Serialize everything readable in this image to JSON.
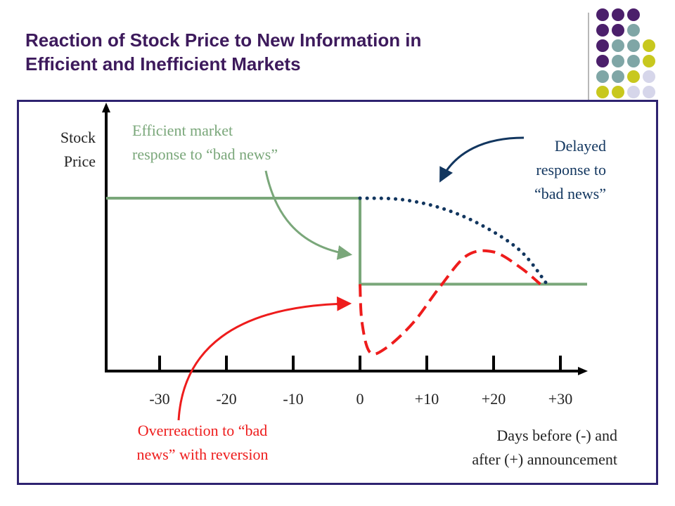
{
  "slide": {
    "title_lines": [
      "Reaction of Stock Price to New Information in",
      "Efficient and Inefficient Markets"
    ],
    "title_color": "#3d1a5c",
    "frame_color": "#2e2370",
    "decor_colors": {
      "purple": "#4b1f6b",
      "teal": "#7fa6a6",
      "olive": "#c8c81e",
      "lavender": "#d6d6ea"
    }
  },
  "chart_data": {
    "type": "line",
    "ylabel_lines": [
      "Stock",
      "Price"
    ],
    "xlabel_lines": [
      "Days before (-) and",
      "after (+) announcement"
    ],
    "xticks": [
      -30,
      -20,
      -10,
      0,
      10,
      20,
      30
    ],
    "xtick_labels": [
      "-30",
      "-20",
      "-10",
      "0",
      "+10",
      "+20",
      "+30"
    ],
    "xlim": [
      -38,
      34
    ],
    "ylim": [
      0,
      10
    ],
    "grid": false,
    "series": [
      {
        "key": "efficient",
        "color": "#7aa77a",
        "style": "solid",
        "points": [
          [
            -38,
            7.0
          ],
          [
            0,
            7.0
          ],
          [
            0,
            3.4
          ],
          [
            34,
            3.4
          ]
        ]
      },
      {
        "key": "delayed",
        "color": "#12365f",
        "style": "dotted",
        "points": [
          [
            0,
            7.0
          ],
          [
            6,
            6.95
          ],
          [
            12,
            6.6
          ],
          [
            18,
            5.9
          ],
          [
            24,
            4.8
          ],
          [
            28,
            3.4
          ]
        ]
      },
      {
        "key": "overreaction",
        "color": "#ee1c1c",
        "style": "dashed",
        "points": [
          [
            0,
            3.4
          ],
          [
            0.3,
            1.8
          ],
          [
            1.5,
            0.55
          ],
          [
            4,
            0.75
          ],
          [
            8,
            1.8
          ],
          [
            12,
            3.3
          ],
          [
            16,
            4.6
          ],
          [
            20,
            4.75
          ],
          [
            24,
            4.1
          ],
          [
            27,
            3.4
          ]
        ]
      }
    ],
    "annotations": [
      {
        "key": "efficient",
        "lines": [
          "Efficient market",
          "response to “bad news”"
        ],
        "color": "#7aa77a"
      },
      {
        "key": "delayed",
        "lines": [
          "Delayed",
          "response to",
          "“bad news”"
        ],
        "color": "#12365f"
      },
      {
        "key": "overreaction",
        "lines": [
          "Overreaction to “bad",
          "news” with reversion"
        ],
        "color": "#ee1c1c"
      }
    ]
  }
}
